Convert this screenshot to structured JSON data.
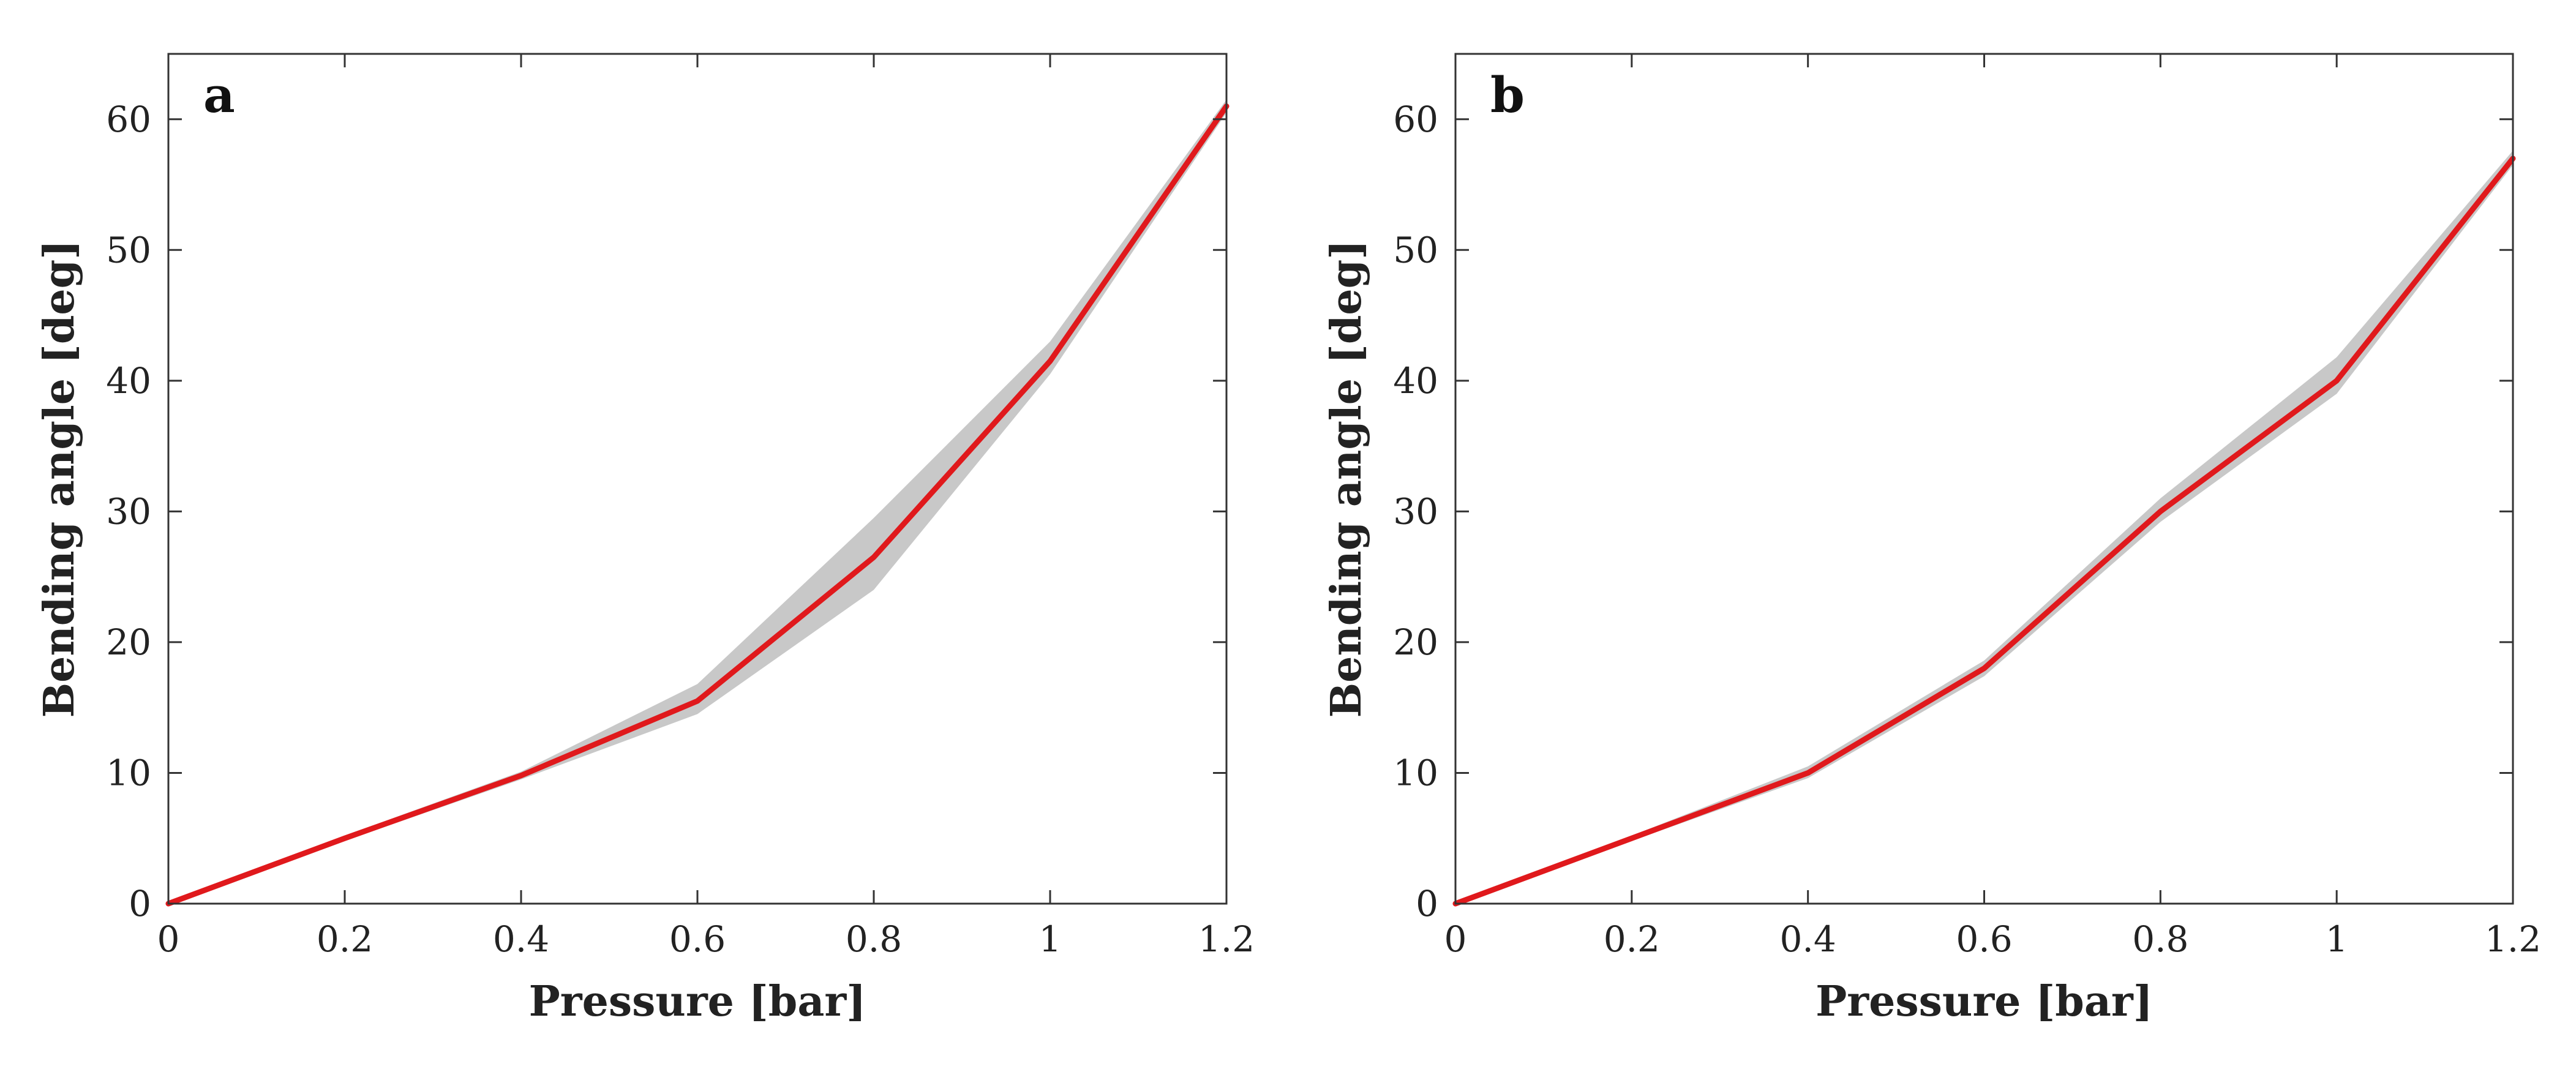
{
  "colors": {
    "line": "#e0191c",
    "band": "#c8c8c8",
    "axis": "#333333"
  },
  "chart_data": [
    {
      "type": "line",
      "panel_label": "a",
      "xlabel": "Pressure [bar]",
      "ylabel": "Bending angle [deg]",
      "xlim": [
        0,
        1.2
      ],
      "ylim": [
        0,
        65
      ],
      "xticks": [
        0,
        0.2,
        0.4,
        0.6,
        0.8,
        1,
        1.2
      ],
      "xtick_labels": [
        "0",
        "0.2",
        "0.4",
        "0.6",
        "0.8",
        "1",
        "1.2"
      ],
      "yticks": [
        0,
        10,
        20,
        30,
        40,
        50,
        60
      ],
      "ytick_labels": [
        "0",
        "10",
        "20",
        "30",
        "40",
        "50",
        "60"
      ],
      "grid": false,
      "x": [
        0,
        0.2,
        0.4,
        0.6,
        0.8,
        1,
        1.2
      ],
      "series": [
        {
          "values": [
            0,
            5,
            9.8,
            15.5,
            26.5,
            41.5,
            61
          ]
        }
      ],
      "band": {
        "lower": [
          0,
          4.8,
          9.5,
          14.5,
          24,
          40.5,
          60.5
        ],
        "upper": [
          0,
          5.2,
          10.1,
          16.8,
          29.5,
          43,
          61.5
        ]
      }
    },
    {
      "type": "line",
      "panel_label": "b",
      "xlabel": "Pressure [bar]",
      "ylabel": "Bending angle [deg]",
      "xlim": [
        0,
        1.2
      ],
      "ylim": [
        0,
        65
      ],
      "xticks": [
        0,
        0.2,
        0.4,
        0.6,
        0.8,
        1,
        1.2
      ],
      "xtick_labels": [
        "0",
        "0.2",
        "0.4",
        "0.6",
        "0.8",
        "1",
        "1.2"
      ],
      "yticks": [
        0,
        10,
        20,
        30,
        40,
        50,
        60
      ],
      "ytick_labels": [
        "0",
        "10",
        "20",
        "30",
        "40",
        "50",
        "60"
      ],
      "grid": false,
      "x": [
        0,
        0.2,
        0.4,
        0.6,
        0.8,
        1,
        1.2
      ],
      "series": [
        {
          "values": [
            0,
            5,
            10,
            18,
            30,
            40,
            57
          ]
        }
      ],
      "band": {
        "lower": [
          0,
          4.8,
          9.6,
          17.4,
          29.2,
          39,
          56.5
        ],
        "upper": [
          0,
          5.2,
          10.5,
          18.6,
          31,
          41.8,
          57.6
        ]
      }
    }
  ]
}
